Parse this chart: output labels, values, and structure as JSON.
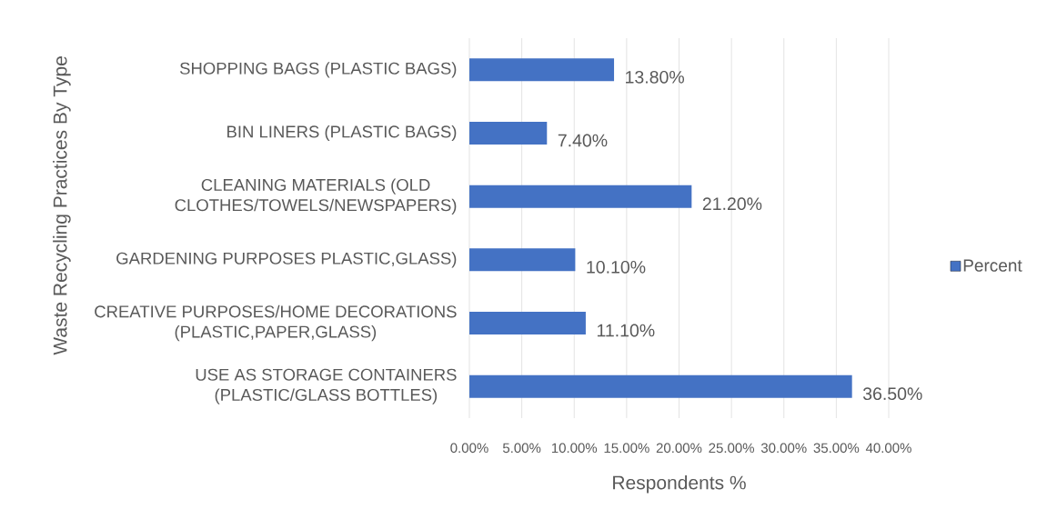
{
  "chart_data": {
    "type": "bar",
    "orientation": "horizontal",
    "categories": [
      "SHOPPING BAGS (PLASTIC BAGS)",
      "BIN LINERS (PLASTIC BAGS)",
      "CLEANING MATERIALS (OLD CLOTHES/TOWELS/NEWSPAPERS)",
      "GARDENING PURPOSES PLASTIC,GLASS)",
      "CREATIVE PURPOSES/HOME DECORATIONS (PLASTIC,PAPER,GLASS)",
      "USE AS STORAGE CONTAINERS (PLASTIC/GLASS BOTTLES)"
    ],
    "series": [
      {
        "name": "Percent",
        "color": "#4472c4",
        "values": [
          13.8,
          7.4,
          21.2,
          10.1,
          11.1,
          36.5
        ],
        "value_labels": [
          "13.80%",
          "7.40%",
          "21.20%",
          "10.10%",
          "11.10%",
          "36.50%"
        ]
      }
    ],
    "xlim": [
      0,
      40
    ],
    "xticks": [
      {
        "value": 0,
        "label": "0.00%"
      },
      {
        "value": 5,
        "label": "5.00%"
      },
      {
        "value": 10,
        "label": "10.00%"
      },
      {
        "value": 15,
        "label": "15.00%"
      },
      {
        "value": 20,
        "label": "20.00%"
      },
      {
        "value": 25,
        "label": "25.00%"
      },
      {
        "value": 30,
        "label": "30.00%"
      },
      {
        "value": 35,
        "label": "35.00%"
      },
      {
        "value": 40,
        "label": "40.00%"
      }
    ],
    "xlabel": "Respondents %",
    "ylabel": "Waste Recycling Practices By Type",
    "grid": "x",
    "legend": "right"
  }
}
